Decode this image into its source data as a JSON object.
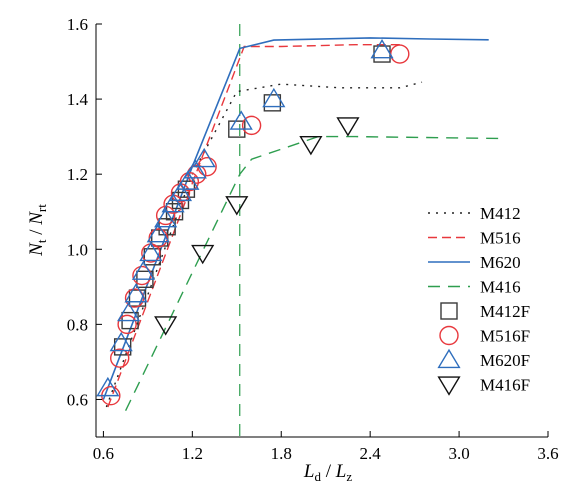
{
  "chart_data": {
    "type": "line",
    "xlabel": {
      "main1": "L",
      "sub1": "d",
      "sep": " / ",
      "main2": "L",
      "sub2": "z"
    },
    "ylabel": {
      "main1": "N",
      "sub1": "t",
      "sep": " / ",
      "main2": "N",
      "sub2": "rt"
    },
    "xlim": [
      0.55,
      3.6
    ],
    "ylim": [
      0.5,
      1.6
    ],
    "x_ticks": [
      0.6,
      1.2,
      1.8,
      2.4,
      3.0,
      3.6
    ],
    "x_tick_labels": [
      "0.6",
      "1.2",
      "1.8",
      "2.4",
      "3.0",
      "3.6"
    ],
    "y_ticks": [
      0.6,
      0.8,
      1.0,
      1.2,
      1.4,
      1.6
    ],
    "y_tick_labels": [
      "0.6",
      "0.8",
      "1.0",
      "1.2",
      "1.4",
      "1.6"
    ],
    "grid": false,
    "legend_placement": "bottom-right",
    "vertical_lines": [
      {
        "x": 1.52,
        "y_range": [
          0.5,
          1.6
        ],
        "color": "#2e9e4f",
        "dash": "long-dash"
      }
    ],
    "series": [
      {
        "name": "M412",
        "kind": "line",
        "color": "#222222",
        "dash": "dotted",
        "x": [
          0.62,
          1.2,
          1.5,
          1.8,
          2.2,
          2.6,
          2.75
        ],
        "y": [
          0.58,
          1.2,
          1.42,
          1.44,
          1.43,
          1.43,
          1.445
        ]
      },
      {
        "name": "M516",
        "kind": "line",
        "color": "#e8383d",
        "dash": "dashed",
        "x": [
          0.63,
          1.3,
          1.55,
          1.8,
          2.3,
          2.6
        ],
        "y": [
          0.58,
          1.28,
          1.54,
          1.54,
          1.545,
          1.545
        ]
      },
      {
        "name": "M620",
        "kind": "line",
        "color": "#2f6ebd",
        "dash": "solid",
        "x": [
          0.6,
          1.2,
          1.52,
          1.75,
          2.4,
          2.8,
          3.2
        ],
        "y": [
          0.6,
          1.22,
          1.535,
          1.557,
          1.563,
          1.56,
          1.558
        ]
      },
      {
        "name": "M416",
        "kind": "line",
        "color": "#2e9e4f",
        "dash": "long-dash",
        "x": [
          0.75,
          1.52,
          1.6,
          2.05,
          2.3,
          3.3
        ],
        "y": [
          0.57,
          1.2,
          1.24,
          1.3,
          1.3,
          1.295
        ]
      },
      {
        "name": "M412F",
        "kind": "marker",
        "shape": "square",
        "color": "#3a3a3a",
        "x": [
          0.73,
          0.78,
          0.83,
          0.88,
          0.93,
          0.98,
          1.03,
          1.08,
          1.12,
          1.16,
          1.5,
          1.74,
          2.48
        ],
        "y": [
          0.74,
          0.81,
          0.87,
          0.92,
          0.98,
          1.03,
          1.06,
          1.1,
          1.13,
          1.16,
          1.32,
          1.39,
          1.52
        ]
      },
      {
        "name": "M516F",
        "kind": "marker",
        "shape": "circle",
        "color": "#e8383d",
        "x": [
          0.65,
          0.71,
          0.76,
          0.81,
          0.86,
          0.92,
          0.97,
          1.02,
          1.07,
          1.12,
          1.18,
          1.23,
          1.3,
          1.6,
          2.6
        ],
        "y": [
          0.61,
          0.71,
          0.8,
          0.87,
          0.93,
          0.99,
          1.03,
          1.09,
          1.12,
          1.15,
          1.18,
          1.2,
          1.22,
          1.33,
          1.52
        ]
      },
      {
        "name": "M620F",
        "kind": "marker",
        "shape": "triangle-up",
        "color": "#2f6ebd",
        "x": [
          0.63,
          0.72,
          0.77,
          0.82,
          0.87,
          0.92,
          0.97,
          1.02,
          1.07,
          1.12,
          1.17,
          1.22,
          1.28,
          1.53,
          1.75,
          2.48
        ],
        "y": [
          0.63,
          0.75,
          0.83,
          0.88,
          0.94,
          0.99,
          1.04,
          1.08,
          1.12,
          1.15,
          1.18,
          1.21,
          1.24,
          1.34,
          1.4,
          1.53
        ]
      },
      {
        "name": "M416F",
        "kind": "marker",
        "shape": "triangle-down",
        "color": "#111111",
        "x": [
          1.02,
          1.27,
          1.5,
          2.0,
          2.25
        ],
        "y": [
          0.8,
          0.99,
          1.12,
          1.28,
          1.33
        ]
      }
    ]
  }
}
